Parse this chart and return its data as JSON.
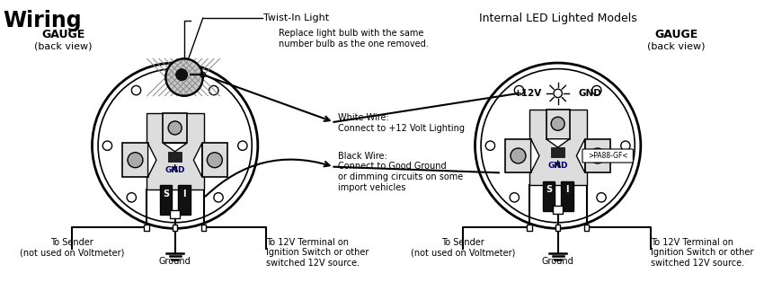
{
  "title_wiring": "Wiring",
  "title_led": "Internal LED Lighted Models",
  "gauge_label": "GAUGE",
  "back_view": "(back view)",
  "twist_in_light": "Twist-In Light",
  "replace_bulb": "Replace light bulb with the same\nnumber bulb as the one removed.",
  "white_wire_label": "White Wire:\nConnect to +12 Volt Lighting",
  "black_wire_label": "Black Wire:\nConnect to Good Ground\nor dimming circuits on some\nimport vehicles",
  "to_sender": "To Sender\n(not used on Voltmeter)",
  "ground_label": "Ground",
  "ignition_label": "To 12V Terminal on\nIgnition Switch or other\nswitched 12V source.",
  "gnd_text": "GND",
  "plus12v": "+12V",
  "led_gnd": "GND",
  "part_number": ">PA88-GF<",
  "bg_color": "#ffffff"
}
